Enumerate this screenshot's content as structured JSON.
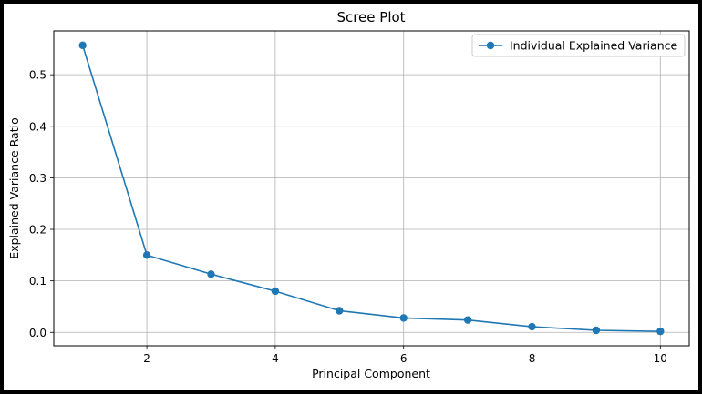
{
  "chart_data": {
    "type": "line",
    "title": "Scree Plot",
    "xlabel": "Principal Component",
    "ylabel": "Explained Variance Ratio",
    "x": [
      1,
      2,
      3,
      4,
      5,
      6,
      7,
      8,
      9,
      10
    ],
    "series": [
      {
        "name": "Individual Explained Variance",
        "values": [
          0.557,
          0.15,
          0.113,
          0.08,
          0.042,
          0.028,
          0.024,
          0.011,
          0.004,
          0.002
        ]
      }
    ],
    "xticks": [
      2,
      4,
      6,
      8,
      10
    ],
    "xtick_labels": [
      "2",
      "4",
      "6",
      "8",
      "10"
    ],
    "yticks": [
      0.0,
      0.1,
      0.2,
      0.3,
      0.4,
      0.5
    ],
    "ytick_labels": [
      "0.0",
      "0.1",
      "0.2",
      "0.3",
      "0.4",
      "0.5"
    ],
    "xlim": [
      0.55,
      10.45
    ],
    "ylim": [
      -0.026,
      0.585
    ],
    "grid": true,
    "legend_position": "upper right",
    "line_color": "#1f77b4"
  }
}
